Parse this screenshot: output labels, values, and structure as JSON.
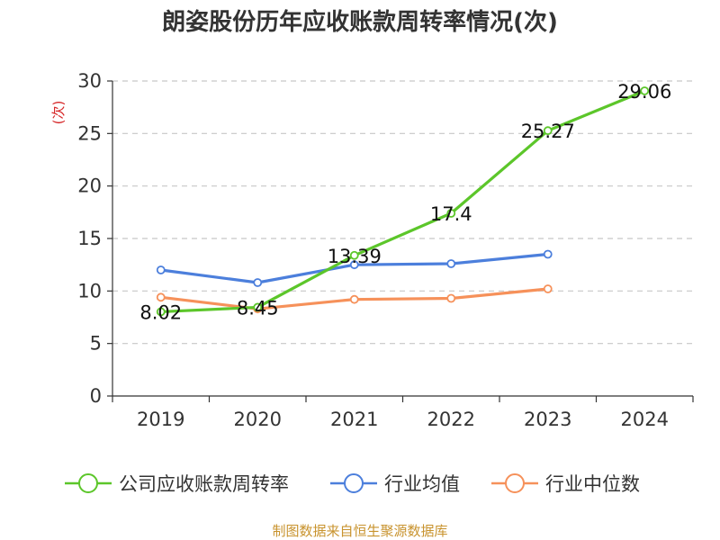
{
  "chart_data": {
    "type": "line",
    "title": "朗姿股份历年应收账款周转率情况(次)",
    "ylabel": "(次)",
    "xlabel": "",
    "categories": [
      "2019",
      "2020",
      "2021",
      "2022",
      "2023",
      "2024"
    ],
    "ylim": [
      0,
      30
    ],
    "yticks": [
      0,
      5,
      10,
      15,
      20,
      25,
      30
    ],
    "grid": true,
    "legend_position": "bottom",
    "series": [
      {
        "name": "公司应收账款周转率",
        "color": "#5cc62a",
        "values": [
          8.02,
          8.45,
          13.39,
          17.4,
          25.27,
          29.06
        ],
        "labels": [
          "8.02",
          "8.45",
          "13.39",
          "17.4",
          "25.27",
          "29.06"
        ]
      },
      {
        "name": "行业均值",
        "color": "#4c7fdc",
        "values": [
          12.0,
          10.8,
          12.5,
          12.6,
          13.5,
          null
        ]
      },
      {
        "name": "行业中位数",
        "color": "#f6915a",
        "values": [
          9.4,
          8.3,
          9.2,
          9.3,
          10.2,
          null
        ]
      }
    ]
  },
  "source": {
    "text": "制图数据来自恒生聚源数据库",
    "color": "#c8932e"
  },
  "ylabel_color": "#d62728"
}
